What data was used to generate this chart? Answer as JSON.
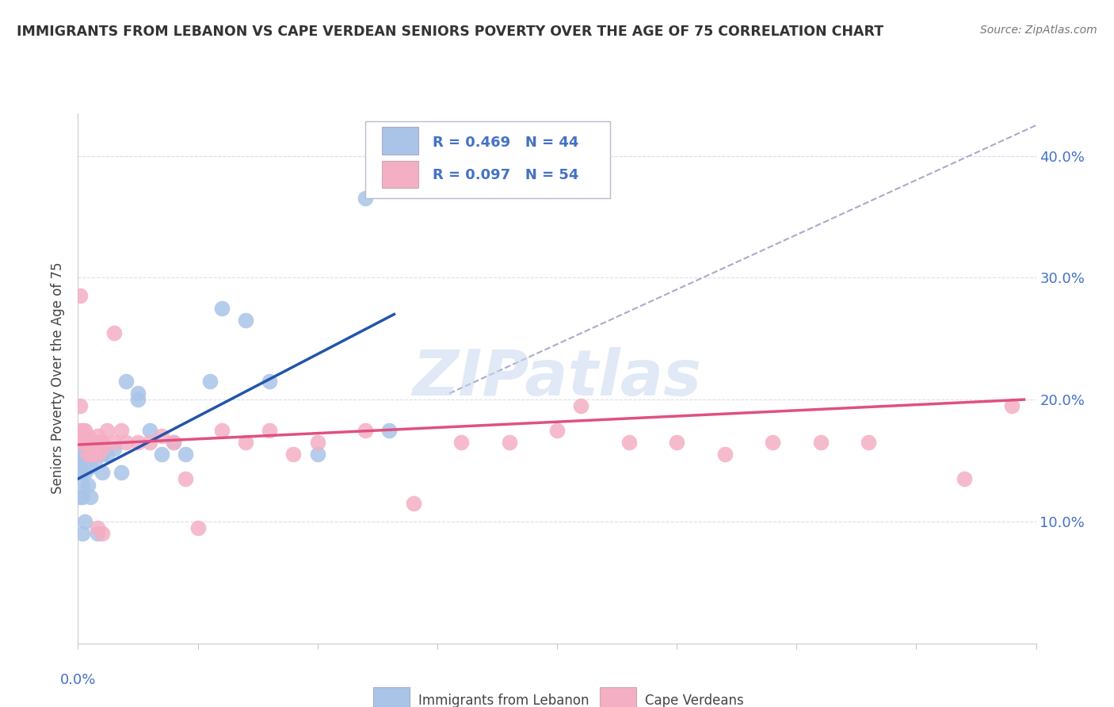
{
  "title": "IMMIGRANTS FROM LEBANON VS CAPE VERDEAN SENIORS POVERTY OVER THE AGE OF 75 CORRELATION CHART",
  "source": "Source: ZipAtlas.com",
  "ylabel": "Seniors Poverty Over the Age of 75",
  "legend_blue_r": "R = 0.469",
  "legend_blue_n": "N = 44",
  "legend_pink_r": "R = 0.097",
  "legend_pink_n": "N = 54",
  "legend_blue_label": "Immigrants from Lebanon",
  "legend_pink_label": "Cape Verdeans",
  "blue_color": "#aac4e8",
  "pink_color": "#f4afc4",
  "blue_line_color": "#2255aa",
  "pink_line_color": "#e05080",
  "dashed_line_color": "#aaaacc",
  "text_color": "#4472c4",
  "xlim": [
    0.0,
    0.4
  ],
  "ylim": [
    0.0,
    0.435
  ],
  "yticks": [
    0.1,
    0.2,
    0.3,
    0.4
  ],
  "ytick_labels": [
    "10.0%",
    "20.0%",
    "30.0%",
    "40.0%"
  ],
  "blue_x": [
    0.001,
    0.001,
    0.001,
    0.001,
    0.001,
    0.002,
    0.002,
    0.002,
    0.002,
    0.002,
    0.002,
    0.003,
    0.003,
    0.003,
    0.003,
    0.004,
    0.004,
    0.004,
    0.005,
    0.005,
    0.005,
    0.006,
    0.007,
    0.008,
    0.008,
    0.01,
    0.01,
    0.012,
    0.015,
    0.018,
    0.02,
    0.025,
    0.03,
    0.035,
    0.04,
    0.045,
    0.055,
    0.06,
    0.07,
    0.08,
    0.1,
    0.12,
    0.13,
    0.025
  ],
  "blue_y": [
    0.155,
    0.16,
    0.145,
    0.15,
    0.12,
    0.155,
    0.155,
    0.14,
    0.13,
    0.12,
    0.09,
    0.155,
    0.155,
    0.14,
    0.1,
    0.16,
    0.155,
    0.13,
    0.16,
    0.145,
    0.12,
    0.165,
    0.15,
    0.155,
    0.09,
    0.155,
    0.14,
    0.155,
    0.16,
    0.14,
    0.215,
    0.2,
    0.175,
    0.155,
    0.165,
    0.155,
    0.215,
    0.275,
    0.265,
    0.215,
    0.155,
    0.365,
    0.175,
    0.205
  ],
  "pink_x": [
    0.001,
    0.001,
    0.001,
    0.001,
    0.002,
    0.002,
    0.002,
    0.003,
    0.003,
    0.004,
    0.004,
    0.005,
    0.005,
    0.006,
    0.006,
    0.007,
    0.008,
    0.008,
    0.008,
    0.009,
    0.01,
    0.01,
    0.01,
    0.01,
    0.012,
    0.015,
    0.015,
    0.018,
    0.02,
    0.025,
    0.03,
    0.035,
    0.04,
    0.045,
    0.05,
    0.06,
    0.07,
    0.08,
    0.09,
    0.1,
    0.12,
    0.14,
    0.16,
    0.18,
    0.2,
    0.21,
    0.23,
    0.25,
    0.27,
    0.29,
    0.31,
    0.33,
    0.37,
    0.39
  ],
  "pink_y": [
    0.165,
    0.195,
    0.175,
    0.285,
    0.17,
    0.175,
    0.165,
    0.175,
    0.165,
    0.17,
    0.155,
    0.165,
    0.155,
    0.165,
    0.155,
    0.165,
    0.17,
    0.155,
    0.095,
    0.165,
    0.165,
    0.165,
    0.16,
    0.09,
    0.175,
    0.165,
    0.255,
    0.175,
    0.165,
    0.165,
    0.165,
    0.17,
    0.165,
    0.135,
    0.095,
    0.175,
    0.165,
    0.175,
    0.155,
    0.165,
    0.175,
    0.115,
    0.165,
    0.165,
    0.175,
    0.195,
    0.165,
    0.165,
    0.155,
    0.165,
    0.165,
    0.165,
    0.135,
    0.195
  ],
  "blue_trend_x": [
    0.0,
    0.132
  ],
  "blue_trend_y": [
    0.135,
    0.27
  ],
  "pink_trend_x": [
    0.0,
    0.395
  ],
  "pink_trend_y": [
    0.163,
    0.2
  ],
  "dashed_line_x": [
    0.155,
    0.4
  ],
  "dashed_line_y": [
    0.205,
    0.425
  ],
  "background_color": "#ffffff",
  "grid_color": "#ddddee"
}
